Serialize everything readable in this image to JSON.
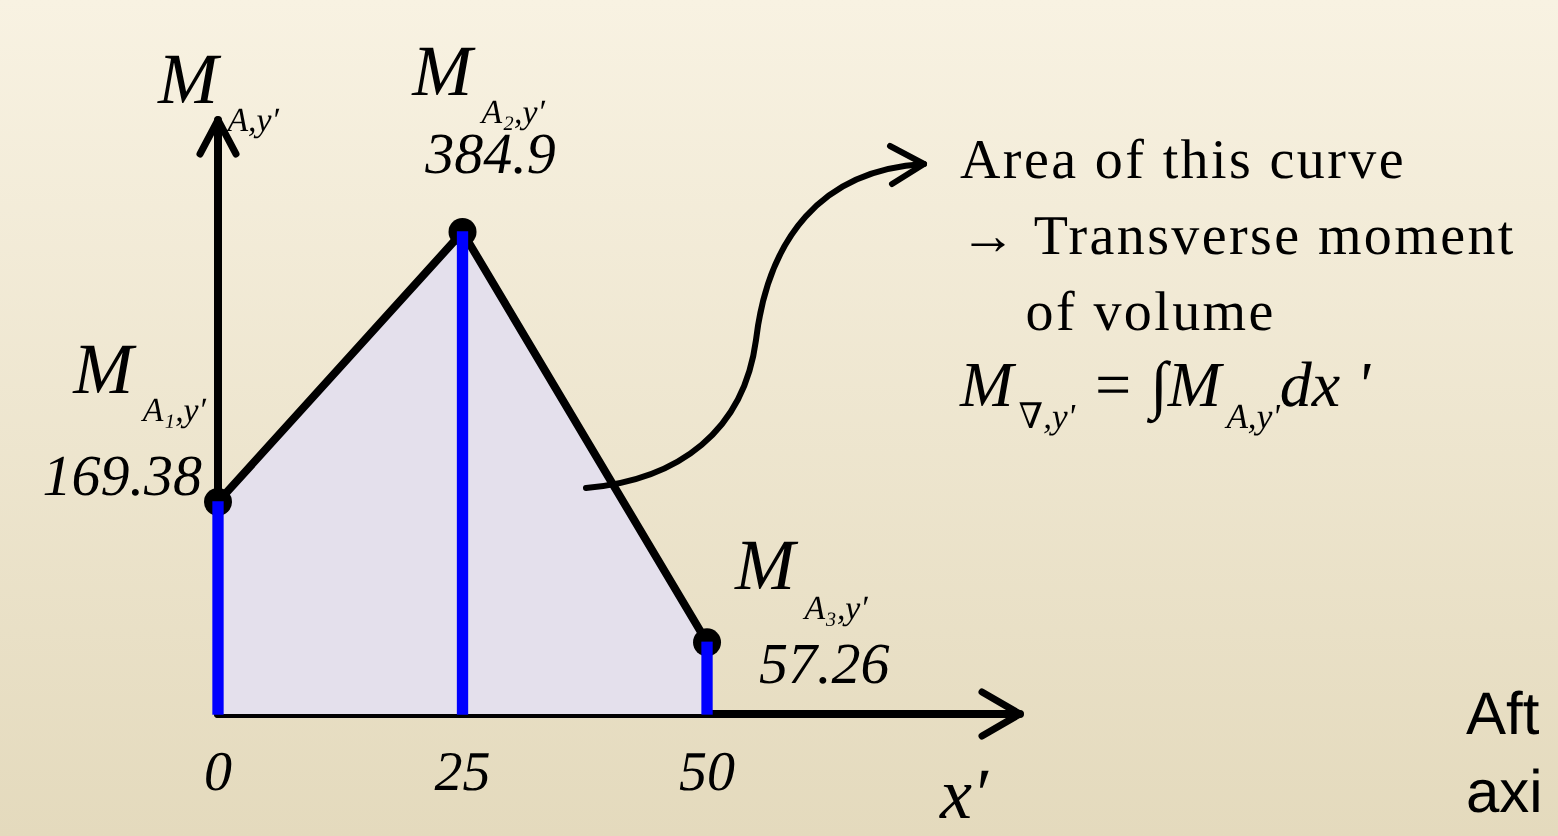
{
  "chart_data": {
    "type": "area",
    "x": [
      0,
      25,
      50
    ],
    "xlim": [
      0,
      82
    ],
    "xticks": [
      0,
      25,
      50
    ],
    "tick_labels": "x",
    "xlabel": "x′",
    "ylabel": "M$_{A,y′}$",
    "marker": "circle",
    "series": [
      {
        "color": "#e4e0ec",
        "values": [
          169.38,
          384.9,
          57.26
        ],
        "value_labels": [
          "169.38",
          "384.9",
          "57.26"
        ]
      },
      {
        "type": "bar",
        "color": "#0000ff",
        "values": [
          169.38,
          384.9,
          57.26
        ]
      }
    ],
    "annotations": [
      {
        "text": "M$_{A₁,y′}$",
        "x": 0,
        "y": 169.38
      },
      {
        "text": "M$_{A₂,y′}$",
        "x": 25,
        "y": 384.9
      },
      {
        "text": "M$_{A₃,y′}$",
        "x": 50,
        "y": 57.26
      },
      "Area of this curve\n→ Transverse moment\n    of volume",
      "M$_{∇,y'}$ = ∫M$_{A,y'}$dx '",
      "Aft\naxi"
    ]
  }
}
